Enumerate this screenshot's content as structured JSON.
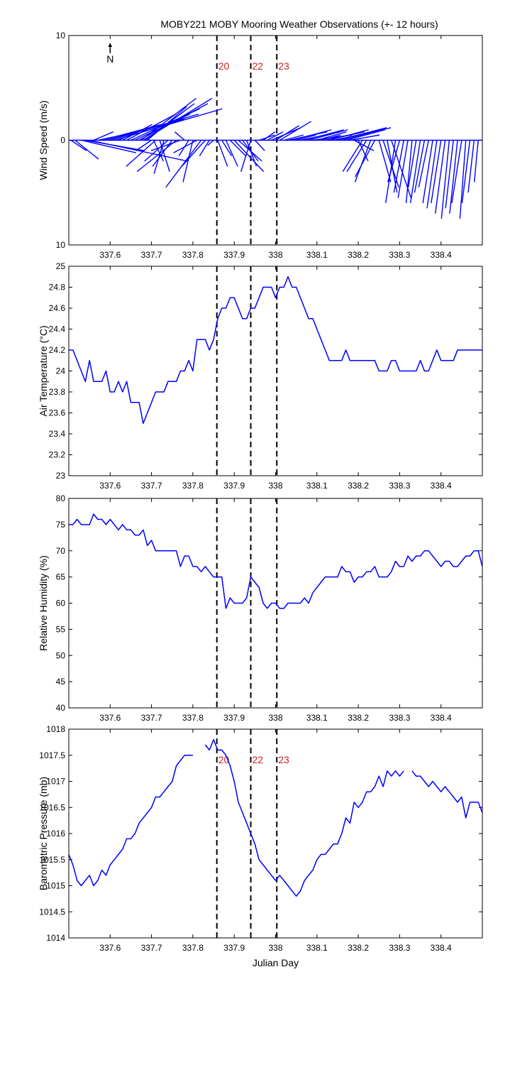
{
  "title": "MOBY221 MOBY Mooring Weather Observations (+- 12 hours)",
  "north_label": "N",
  "x_axis": {
    "label": "Julian Day",
    "range": [
      337.5,
      338.5
    ],
    "ticks": [
      337.6,
      337.7,
      337.8,
      337.9,
      338,
      338.1,
      338.2,
      338.3,
      338.4
    ],
    "tick_labels": [
      "337.6",
      "337.7",
      "337.8",
      "337.9",
      "338",
      "338.1",
      "338.2",
      "338.3",
      "338.4"
    ]
  },
  "markers": [
    {
      "x": 337.858,
      "label": "20"
    },
    {
      "x": 337.94,
      "label": "22"
    },
    {
      "x": 338.003,
      "label": "23"
    }
  ],
  "colors": {
    "series": "#0000ff",
    "marker_text": "#cc2222",
    "axes": "#000000"
  },
  "chart_data": [
    {
      "type": "line",
      "name": "wind",
      "ylabel": "Wind Speed (m/s)",
      "ylim": [
        -10,
        10
      ],
      "yticks": [
        -10,
        0,
        10
      ],
      "ytick_labels": [
        "10",
        "0",
        "10"
      ],
      "show_markers_labels": true,
      "note": "wind sticks: u (east) and v (north) components in m/s",
      "x": [
        337.505,
        337.515,
        337.53,
        337.54,
        337.55,
        337.56,
        337.57,
        337.58,
        337.59,
        337.6,
        337.61,
        337.62,
        337.63,
        337.64,
        337.65,
        337.66,
        337.67,
        337.675,
        337.68,
        337.685,
        337.69,
        337.7,
        337.705,
        337.71,
        337.72,
        337.73,
        337.74,
        337.75,
        337.76,
        337.77,
        337.78,
        337.79,
        337.8,
        337.81,
        337.82,
        337.83,
        337.84,
        337.85,
        337.86,
        337.87,
        337.88,
        337.89,
        337.9,
        337.91,
        337.92,
        337.93,
        337.94,
        337.95,
        337.96,
        337.97,
        337.98,
        337.99,
        338.0,
        338.01,
        338.02,
        338.03,
        338.04,
        338.05,
        338.06,
        338.07,
        338.08,
        338.09,
        338.1,
        338.11,
        338.12,
        338.13,
        338.14,
        338.15,
        338.16,
        338.17,
        338.18,
        338.19,
        338.2,
        338.21,
        338.22,
        338.23,
        338.24,
        338.25,
        338.26,
        338.27,
        338.28,
        338.29,
        338.3,
        338.31,
        338.32,
        338.33,
        338.34,
        338.35,
        338.36,
        338.37,
        338.38,
        338.39,
        338.4,
        338.41,
        338.42,
        338.43,
        338.44,
        338.45,
        338.46,
        338.47,
        338.48,
        338.49
      ],
      "u": [
        0.8,
        1.2,
        2.8,
        3.0,
        5.0,
        1.0,
        2.5,
        3.0,
        4.0,
        4.5,
        5.5,
        1.2,
        1.5,
        2.5,
        3.5,
        2.8,
        3.5,
        2.8,
        3.5,
        2.5,
        2.0,
        -0.8,
        0.5,
        -1.5,
        0.5,
        -0.5,
        -1.2,
        -1.0,
        -2.0,
        -1.5,
        -0.5,
        -0.5,
        -0.5,
        -1.2,
        -1.8,
        -1.2,
        -0.5,
        -0.3,
        0.5,
        0.5,
        0.6,
        0.8,
        1.5,
        1.2,
        0.8,
        0.5,
        -0.5,
        0.5,
        0.8,
        0.6,
        0.8,
        1.5,
        1.2,
        1.6,
        1.0,
        2.0,
        2.0,
        1.0,
        2.0,
        2.0,
        2.0,
        2.0,
        1.5,
        1.0,
        2.0,
        2.0,
        2.5,
        2.5,
        2.5,
        2.0,
        1.5,
        1.0,
        0.5,
        -1.0,
        -1.0,
        -0.8,
        -1.0,
        0.6,
        0.8,
        0.5,
        1.0,
        -0.5,
        -0.6,
        -0.5,
        -0.5,
        -0.3,
        -0.4,
        -0.5,
        -0.5,
        -0.5,
        -0.5,
        -0.5,
        -0.5,
        -0.5,
        -0.4,
        -0.4,
        -0.4,
        -0.5,
        -0.3,
        -0.4,
        -0.3,
        -0.2
      ],
      "v": [
        -1.0,
        -1.8,
        -1.2,
        -1.0,
        -2.0,
        0.8,
        1.0,
        1.5,
        2.0,
        2.5,
        3.0,
        1.0,
        1.5,
        2.5,
        3.0,
        2.5,
        3.5,
        4.0,
        4.0,
        3.5,
        3.2,
        -1.0,
        -2.0,
        -2.5,
        -3.0,
        -3.2,
        -2.0,
        -2.5,
        -3.0,
        -1.0,
        0.8,
        -1.5,
        -4.0,
        -1.2,
        -4.5,
        -2.5,
        -1.5,
        -0.5,
        -2.5,
        -1.5,
        -2.5,
        -1.5,
        -3.0,
        -2.0,
        -2.0,
        -2.5,
        -3.0,
        -1.0,
        0.5,
        0.8,
        0.8,
        1.2,
        1.4,
        1.8,
        0.5,
        0.8,
        1.0,
        0.5,
        0.8,
        1.0,
        1.0,
        0.5,
        0.8,
        0.5,
        0.8,
        1.0,
        1.0,
        1.2,
        1.2,
        1.0,
        0.5,
        -1.0,
        -2.0,
        -3.0,
        -3.0,
        -4.0,
        -3.5,
        -4.0,
        -4.5,
        -5.0,
        -5.5,
        -6.0,
        -4.0,
        -5.0,
        -5.5,
        -6.0,
        -4.5,
        -6.0,
        -5.0,
        -4.5,
        -6.0,
        -6.5,
        -6.0,
        -7.0,
        -7.5,
        -6.5,
        -7.0,
        -6.0,
        -7.5,
        -6.0,
        -5.0,
        -4.0
      ]
    },
    {
      "type": "line",
      "name": "air_temperature",
      "ylabel": "Air Temperature (°C)",
      "ylim": [
        23,
        25
      ],
      "yticks": [
        23,
        23.2,
        23.4,
        23.6,
        23.8,
        24,
        24.2,
        24.4,
        24.6,
        24.8,
        25
      ],
      "ytick_labels": [
        "23",
        "23.2",
        "23.4",
        "23.6",
        "23.8",
        "24",
        "24.2",
        "24.4",
        "24.6",
        "24.8",
        "25"
      ],
      "x": [
        337.5,
        337.51,
        337.52,
        337.53,
        337.54,
        337.55,
        337.56,
        337.57,
        337.58,
        337.59,
        337.6,
        337.61,
        337.62,
        337.63,
        337.64,
        337.65,
        337.66,
        337.67,
        337.68,
        337.69,
        337.7,
        337.71,
        337.72,
        337.73,
        337.74,
        337.75,
        337.76,
        337.77,
        337.78,
        337.79,
        337.8,
        337.81,
        337.82,
        337.83,
        337.84,
        337.85,
        337.86,
        337.87,
        337.88,
        337.89,
        337.9,
        337.91,
        337.92,
        337.93,
        337.94,
        337.95,
        337.96,
        337.97,
        337.98,
        337.99,
        338.0,
        338.01,
        338.02,
        338.03,
        338.04,
        338.05,
        338.06,
        338.07,
        338.08,
        338.09,
        338.1,
        338.11,
        338.12,
        338.13,
        338.14,
        338.15,
        338.16,
        338.17,
        338.18,
        338.19,
        338.2,
        338.21,
        338.22,
        338.23,
        338.24,
        338.25,
        338.26,
        338.27,
        338.28,
        338.29,
        338.3,
        338.31,
        338.32,
        338.33,
        338.34,
        338.35,
        338.36,
        338.37,
        338.38,
        338.39,
        338.4,
        338.41,
        338.42,
        338.43,
        338.44,
        338.45,
        338.46,
        338.47,
        338.48,
        338.49,
        338.5
      ],
      "values": [
        24.2,
        24.2,
        24.1,
        24.0,
        23.9,
        24.1,
        23.9,
        23.9,
        23.9,
        24.0,
        23.8,
        23.8,
        23.9,
        23.8,
        23.9,
        23.7,
        23.7,
        23.7,
        23.5,
        23.6,
        23.7,
        23.8,
        23.8,
        23.8,
        23.9,
        23.9,
        23.9,
        24.0,
        24.0,
        24.1,
        24.0,
        24.3,
        24.3,
        24.3,
        24.2,
        24.3,
        24.5,
        24.6,
        24.6,
        24.7,
        24.7,
        24.6,
        24.5,
        24.5,
        24.6,
        24.6,
        24.7,
        24.8,
        24.8,
        24.8,
        24.7,
        24.8,
        24.8,
        24.9,
        24.8,
        24.8,
        24.7,
        24.6,
        24.5,
        24.5,
        24.4,
        24.3,
        24.2,
        24.1,
        24.1,
        24.1,
        24.1,
        24.2,
        24.1,
        24.1,
        24.1,
        24.1,
        24.1,
        24.1,
        24.1,
        24.0,
        24.0,
        24.0,
        24.1,
        24.1,
        24.0,
        24.0,
        24.0,
        24.0,
        24.0,
        24.1,
        24.0,
        24.0,
        24.1,
        24.2,
        24.1,
        24.1,
        24.1,
        24.1,
        24.2,
        24.2,
        24.2,
        24.2,
        24.2,
        24.2,
        24.2
      ]
    },
    {
      "type": "line",
      "name": "relative_humidity",
      "ylabel": "Relative Humidity (%)",
      "ylim": [
        40,
        80
      ],
      "yticks": [
        40,
        45,
        50,
        55,
        60,
        65,
        70,
        75,
        80
      ],
      "ytick_labels": [
        "40",
        "45",
        "50",
        "55",
        "60",
        "65",
        "70",
        "75",
        "80"
      ],
      "x": [
        337.5,
        337.51,
        337.52,
        337.53,
        337.54,
        337.55,
        337.56,
        337.57,
        337.58,
        337.59,
        337.6,
        337.61,
        337.62,
        337.63,
        337.64,
        337.65,
        337.66,
        337.67,
        337.68,
        337.69,
        337.7,
        337.71,
        337.72,
        337.73,
        337.74,
        337.75,
        337.76,
        337.77,
        337.78,
        337.79,
        337.8,
        337.81,
        337.82,
        337.83,
        337.84,
        337.85,
        337.86,
        337.87,
        337.88,
        337.89,
        337.9,
        337.91,
        337.92,
        337.93,
        337.94,
        337.95,
        337.96,
        337.97,
        337.98,
        337.99,
        338.0,
        338.01,
        338.02,
        338.03,
        338.04,
        338.05,
        338.06,
        338.07,
        338.08,
        338.09,
        338.1,
        338.11,
        338.12,
        338.13,
        338.14,
        338.15,
        338.16,
        338.17,
        338.18,
        338.19,
        338.2,
        338.21,
        338.22,
        338.23,
        338.24,
        338.25,
        338.26,
        338.27,
        338.28,
        338.29,
        338.3,
        338.31,
        338.32,
        338.33,
        338.34,
        338.35,
        338.36,
        338.37,
        338.38,
        338.39,
        338.4,
        338.41,
        338.42,
        338.43,
        338.44,
        338.45,
        338.46,
        338.47,
        338.48,
        338.49,
        338.5
      ],
      "values": [
        75,
        75,
        76,
        75,
        75,
        75,
        77,
        76,
        76,
        75,
        76,
        75,
        74,
        75,
        74,
        74,
        73,
        73,
        74,
        71,
        72,
        70,
        70,
        70,
        70,
        70,
        70,
        67,
        69,
        69,
        67,
        67,
        66,
        67,
        66,
        65,
        65,
        65,
        59,
        61,
        60,
        60,
        60,
        61,
        65,
        64,
        63,
        60,
        59,
        60,
        60,
        59,
        59,
        60,
        60,
        60,
        60,
        61,
        60,
        62,
        63,
        64,
        65,
        65,
        65,
        65,
        67,
        66,
        66,
        64,
        65,
        65,
        66,
        66,
        67,
        65,
        65,
        65,
        66,
        68,
        67,
        67,
        69,
        68,
        69,
        69,
        70,
        70,
        69,
        68,
        67,
        68,
        68,
        67,
        67,
        68,
        69,
        69,
        70,
        70,
        67
      ]
    },
    {
      "type": "line",
      "name": "barometric_pressure",
      "ylabel": "Barometric Pressure (mb)",
      "ylim": [
        1014,
        1018
      ],
      "yticks": [
        1014,
        1014.5,
        1015,
        1015.5,
        1016,
        1016.5,
        1017,
        1017.5,
        1018
      ],
      "ytick_labels": [
        "1014",
        "1014.5",
        "1015",
        "1015.5",
        "1016",
        "1016.5",
        "1017",
        "1017.5",
        "1018"
      ],
      "show_markers_labels": true,
      "segments": [
        {
          "x": [
            337.5,
            337.51,
            337.52,
            337.53,
            337.54,
            337.55,
            337.56,
            337.57,
            337.58,
            337.59,
            337.6,
            337.61,
            337.62,
            337.63,
            337.64,
            337.65,
            337.66,
            337.67,
            337.68,
            337.69,
            337.7,
            337.71,
            337.72,
            337.73,
            337.74,
            337.75,
            337.76,
            337.77,
            337.78,
            337.79,
            337.8
          ],
          "values": [
            1015.6,
            1015.4,
            1015.1,
            1015.0,
            1015.1,
            1015.2,
            1015.0,
            1015.1,
            1015.3,
            1015.2,
            1015.4,
            1015.5,
            1015.6,
            1015.7,
            1015.9,
            1015.9,
            1016.0,
            1016.2,
            1016.3,
            1016.4,
            1016.5,
            1016.7,
            1016.7,
            1016.8,
            1016.9,
            1017.0,
            1017.3,
            1017.4,
            1017.5,
            1017.5,
            1017.5
          ]
        },
        {
          "x": [
            337.83,
            337.84,
            337.85,
            337.86,
            337.87,
            337.88,
            337.89,
            337.9,
            337.91,
            337.92,
            337.93,
            337.94,
            337.95,
            337.96,
            337.97,
            337.98,
            337.99,
            338.0,
            338.01,
            338.02,
            338.03,
            338.04,
            338.05,
            338.06,
            338.07,
            338.08,
            338.09,
            338.1,
            338.11,
            338.12,
            338.13,
            338.14,
            338.15,
            338.16,
            338.17,
            338.18,
            338.19,
            338.2,
            338.21,
            338.22,
            338.23,
            338.24,
            338.25,
            338.26,
            338.27,
            338.28,
            338.29,
            338.3,
            338.31
          ],
          "values": [
            1017.7,
            1017.6,
            1017.8,
            1017.6,
            1017.6,
            1017.5,
            1017.3,
            1017.0,
            1016.6,
            1016.4,
            1016.2,
            1016.0,
            1015.8,
            1015.5,
            1015.4,
            1015.3,
            1015.2,
            1015.1,
            1015.2,
            1015.1,
            1015.0,
            1014.9,
            1014.8,
            1014.9,
            1015.1,
            1015.2,
            1015.3,
            1015.5,
            1015.6,
            1015.6,
            1015.7,
            1015.8,
            1015.8,
            1016.0,
            1016.3,
            1016.2,
            1016.6,
            1016.5,
            1016.6,
            1016.8,
            1016.8,
            1016.9,
            1017.1,
            1016.9,
            1017.2,
            1017.1,
            1017.2,
            1017.1,
            1017.2
          ]
        },
        {
          "x": [
            338.33,
            338.34,
            338.35,
            338.36,
            338.37,
            338.38,
            338.39,
            338.4,
            338.41,
            338.42,
            338.43,
            338.44,
            338.45,
            338.46,
            338.47,
            338.48,
            338.49,
            338.5
          ],
          "values": [
            1017.2,
            1017.1,
            1017.1,
            1017.0,
            1016.9,
            1017.0,
            1016.9,
            1016.8,
            1016.9,
            1016.8,
            1016.7,
            1016.6,
            1016.7,
            1016.3,
            1016.6,
            1016.6,
            1016.6,
            1016.4
          ]
        }
      ]
    }
  ]
}
